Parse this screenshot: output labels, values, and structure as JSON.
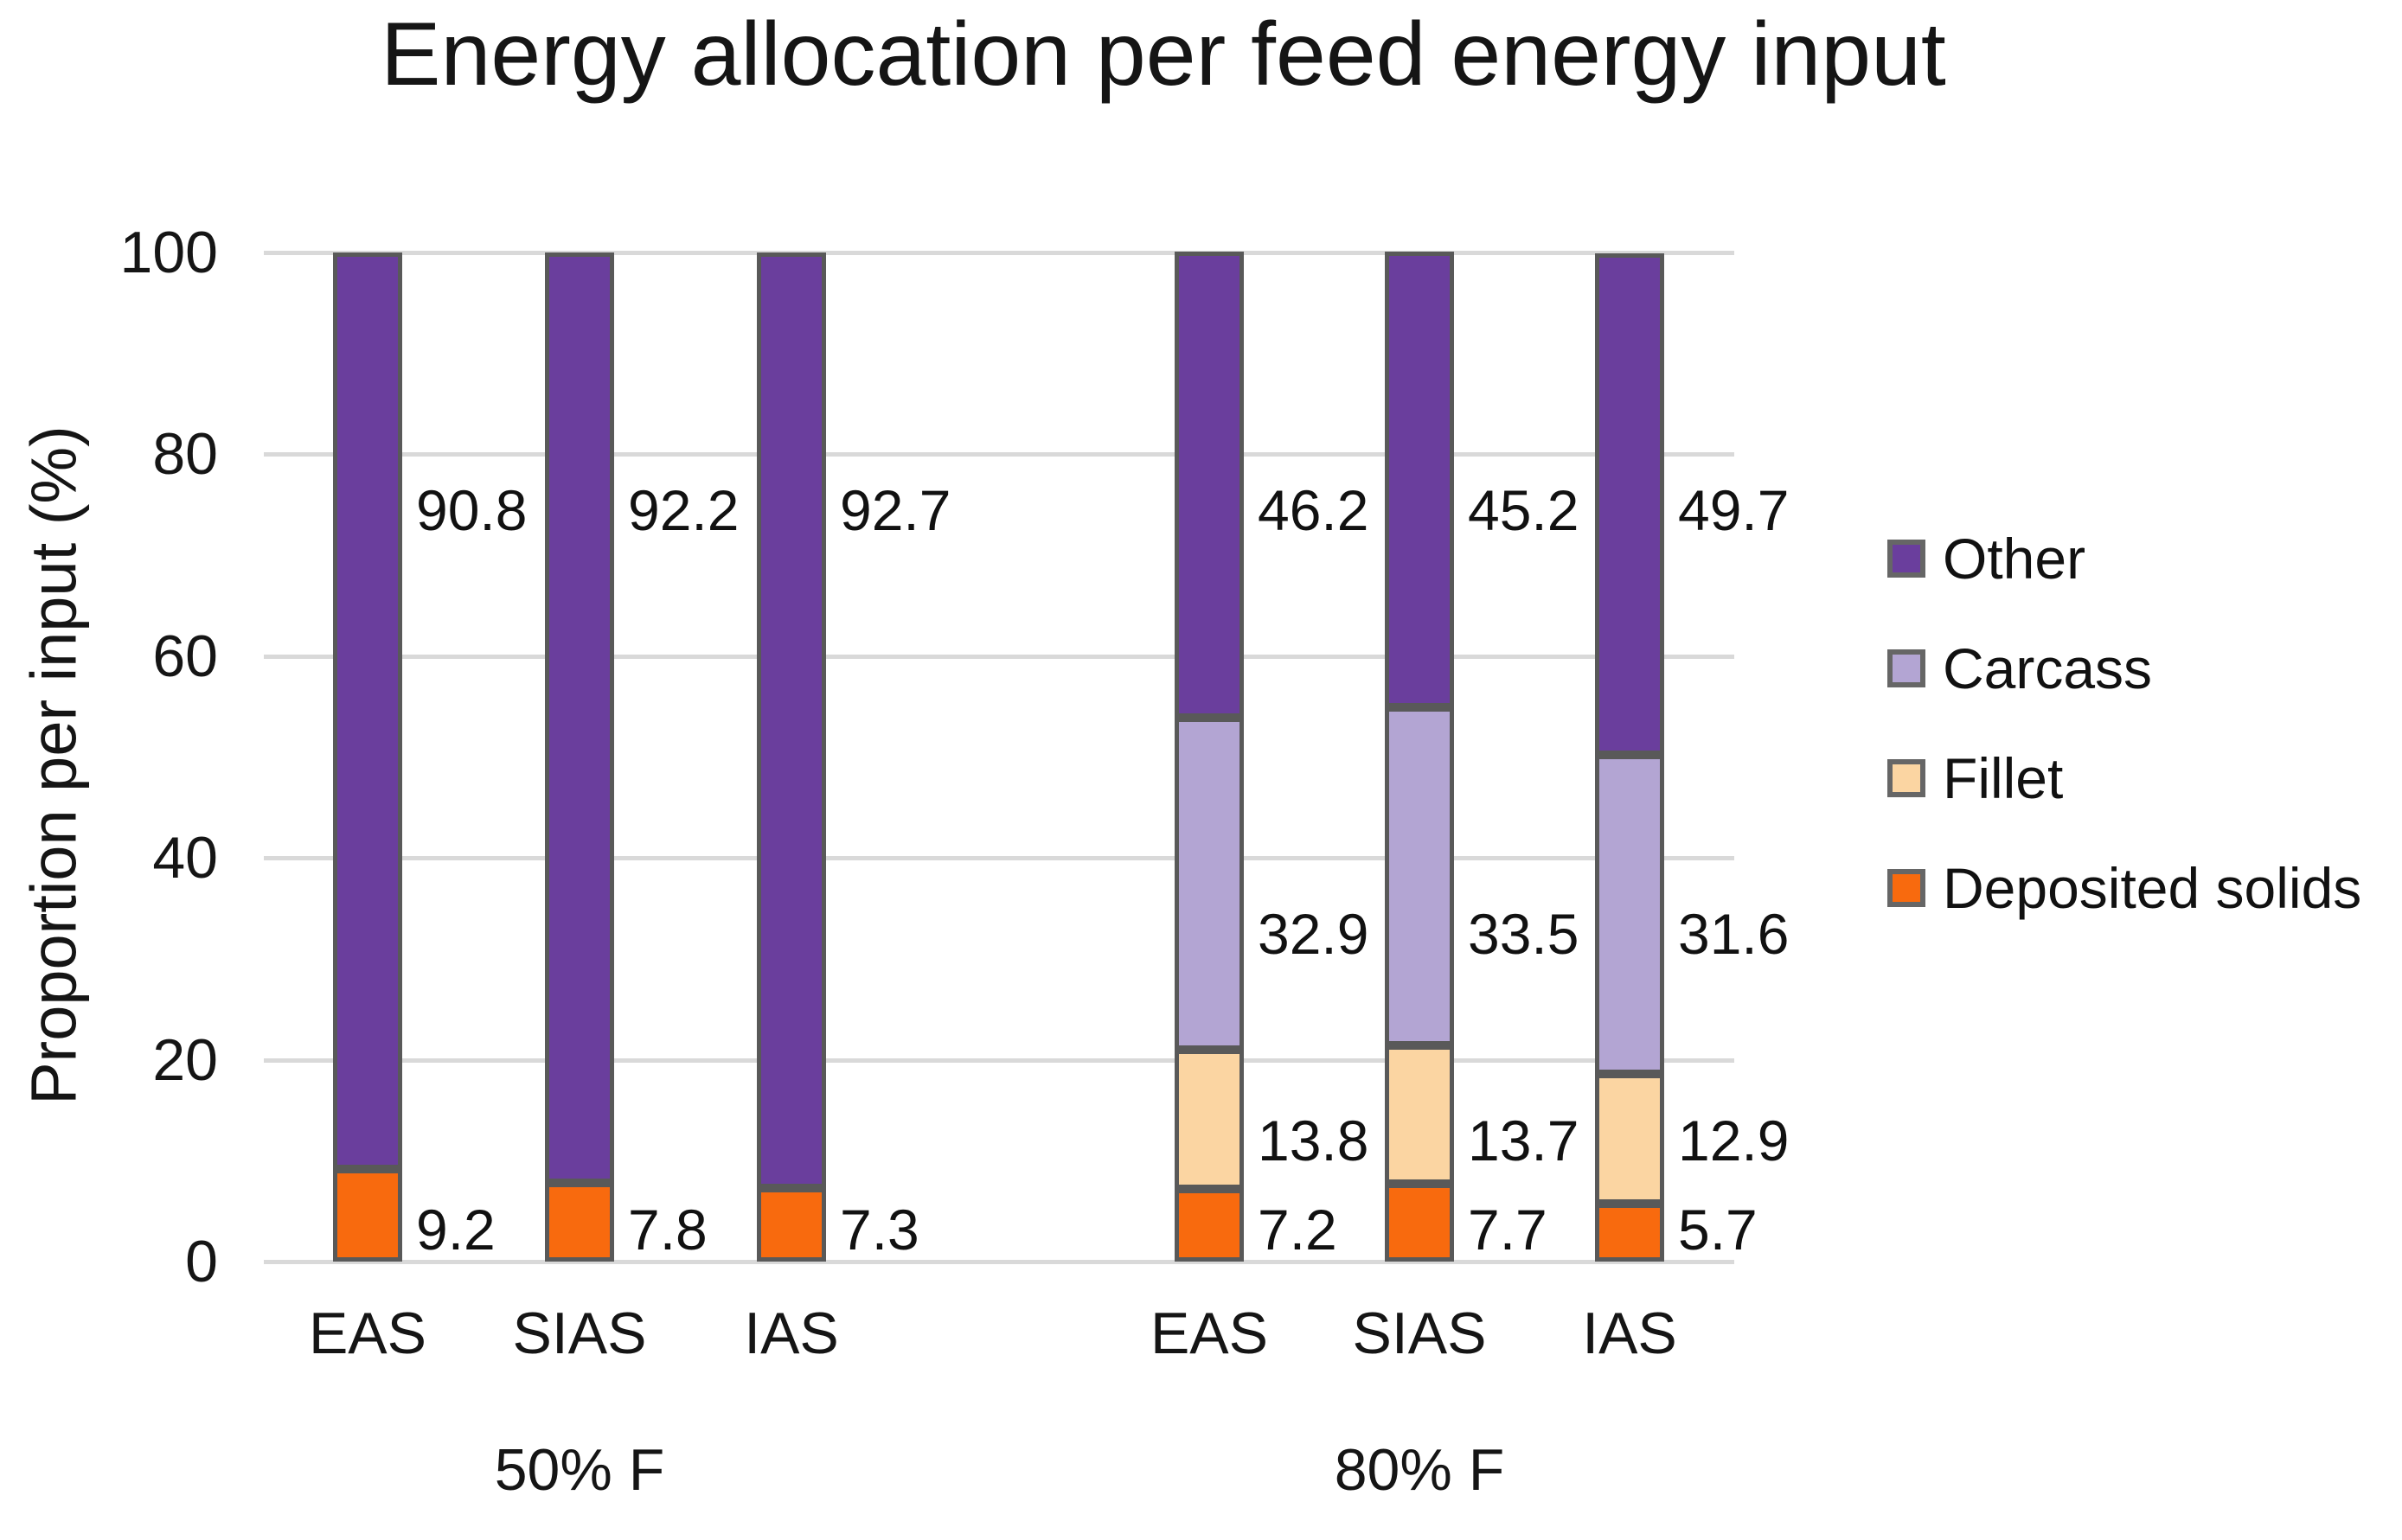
{
  "chart_data": {
    "type": "bar",
    "stacked": true,
    "title": "Energy allocation per feed energy input",
    "ylabel": "Proportion per input (%)",
    "xlabel": "",
    "ylim": [
      0,
      100
    ],
    "yticks": [
      0,
      20,
      40,
      60,
      80,
      100
    ],
    "grid": true,
    "legend_position": "right",
    "series_colors": {
      "Other": "#6A3E9D",
      "Carcass": "#B3A5D3",
      "Fillet": "#FBD5A2",
      "Deposited solids": "#F86A0E"
    },
    "legend": [
      {
        "label": "Other",
        "color": "#6A3E9D"
      },
      {
        "label": "Carcass",
        "color": "#B3A5D3"
      },
      {
        "label": "Fillet",
        "color": "#FBD5A2"
      },
      {
        "label": "Deposited solids",
        "color": "#F86A0E"
      }
    ],
    "groups": [
      {
        "label": "50% F",
        "bars": [
          {
            "category": "EAS",
            "segments": [
              {
                "series": "Deposited solids",
                "value": 9.2,
                "label": "9.2",
                "label_y_pct": 3.2
              },
              {
                "series": "Other",
                "value": 90.8,
                "label": "90.8",
                "label_y_pct": 74.5
              }
            ]
          },
          {
            "category": "SIAS",
            "segments": [
              {
                "series": "Deposited solids",
                "value": 7.8,
                "label": "7.8",
                "label_y_pct": 3.2
              },
              {
                "series": "Other",
                "value": 92.2,
                "label": "92.2",
                "label_y_pct": 74.5
              }
            ]
          },
          {
            "category": "IAS",
            "segments": [
              {
                "series": "Deposited solids",
                "value": 7.3,
                "label": "7.3",
                "label_y_pct": 3.2
              },
              {
                "series": "Other",
                "value": 92.7,
                "label": "92.7",
                "label_y_pct": 74.5
              }
            ]
          }
        ]
      },
      {
        "label": "80% F",
        "bars": [
          {
            "category": "EAS",
            "segments": [
              {
                "series": "Deposited solids",
                "value": 7.2,
                "label": "7.2",
                "label_y_pct": 3.2
              },
              {
                "series": "Fillet",
                "value": 13.8,
                "label": "13.8",
                "label_y_pct": 12.0
              },
              {
                "series": "Carcass",
                "value": 32.9,
                "label": "32.9",
                "label_y_pct": 32.5
              },
              {
                "series": "Other",
                "value": 46.2,
                "label": "46.2",
                "label_y_pct": 74.5
              }
            ]
          },
          {
            "category": "SIAS",
            "segments": [
              {
                "series": "Deposited solids",
                "value": 7.7,
                "label": "7.7",
                "label_y_pct": 3.2
              },
              {
                "series": "Fillet",
                "value": 13.7,
                "label": "13.7",
                "label_y_pct": 12.0
              },
              {
                "series": "Carcass",
                "value": 33.5,
                "label": "33.5",
                "label_y_pct": 32.5
              },
              {
                "series": "Other",
                "value": 45.2,
                "label": "45.2",
                "label_y_pct": 74.5
              }
            ]
          },
          {
            "category": "IAS",
            "segments": [
              {
                "series": "Deposited solids",
                "value": 5.7,
                "label": "5.7",
                "label_y_pct": 3.2
              },
              {
                "series": "Fillet",
                "value": 12.9,
                "label": "12.9",
                "label_y_pct": 12.0
              },
              {
                "series": "Carcass",
                "value": 31.6,
                "label": "31.6",
                "label_y_pct": 32.5
              },
              {
                "series": "Other",
                "value": 49.7,
                "label": "49.7",
                "label_y_pct": 74.5
              }
            ]
          }
        ]
      }
    ],
    "colors": {
      "segment_border": "#595959",
      "gridline": "#D9D9D9",
      "axis_line": "#D9D9D9",
      "text": "#111111",
      "background": "#FFFFFF"
    }
  }
}
